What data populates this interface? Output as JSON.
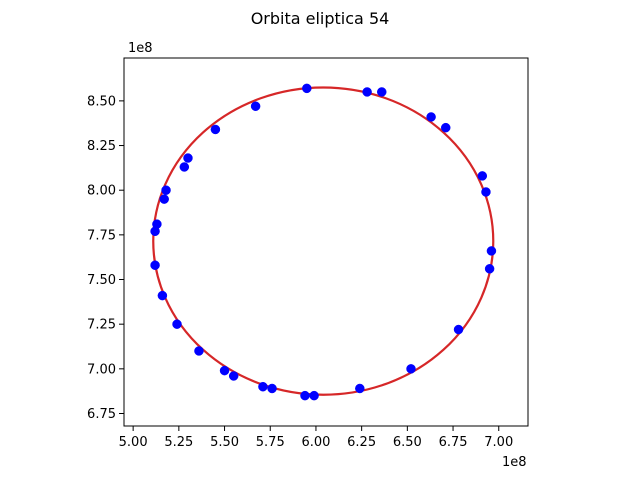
{
  "chart_data": {
    "type": "scatter",
    "title": "Orbita eliptica 54",
    "xlabel": "",
    "ylabel": "",
    "x_offset_label": "1e8",
    "y_offset_label": "1e8",
    "xlim": [
      4.95,
      7.16
    ],
    "ylim": [
      6.68,
      8.74
    ],
    "x_ticks": [
      5.0,
      5.25,
      5.5,
      5.75,
      6.0,
      6.25,
      6.5,
      6.75,
      7.0
    ],
    "x_tick_labels": [
      "5.00",
      "5.25",
      "5.50",
      "5.75",
      "6.00",
      "6.25",
      "6.50",
      "6.75",
      "7.00"
    ],
    "y_ticks": [
      6.75,
      7.0,
      7.25,
      7.5,
      7.75,
      8.0,
      8.25,
      8.5
    ],
    "y_tick_labels": [
      "6.75",
      "7.00",
      "7.25",
      "7.50",
      "7.75",
      "8.00",
      "8.25",
      "8.50"
    ],
    "grid": false,
    "legend": "none",
    "orbit_color": "#d62728",
    "point_color": "#0000ff",
    "orbit_curve": {
      "center": [
        6.04,
        7.715
      ],
      "semi_axis_x": 0.93,
      "semi_axis_y": 0.86
    },
    "points": [
      {
        "x": 5.95,
        "y": 8.57
      },
      {
        "x": 6.28,
        "y": 8.55
      },
      {
        "x": 6.36,
        "y": 8.55
      },
      {
        "x": 5.67,
        "y": 8.47
      },
      {
        "x": 6.63,
        "y": 8.41
      },
      {
        "x": 6.71,
        "y": 8.35
      },
      {
        "x": 5.45,
        "y": 8.34
      },
      {
        "x": 5.3,
        "y": 8.18
      },
      {
        "x": 5.28,
        "y": 8.13
      },
      {
        "x": 6.91,
        "y": 8.08
      },
      {
        "x": 5.18,
        "y": 8.0
      },
      {
        "x": 6.93,
        "y": 7.99
      },
      {
        "x": 5.17,
        "y": 7.95
      },
      {
        "x": 5.13,
        "y": 7.81
      },
      {
        "x": 5.12,
        "y": 7.77
      },
      {
        "x": 6.96,
        "y": 7.66
      },
      {
        "x": 5.12,
        "y": 7.58
      },
      {
        "x": 6.95,
        "y": 7.56
      },
      {
        "x": 5.16,
        "y": 7.41
      },
      {
        "x": 5.24,
        "y": 7.25
      },
      {
        "x": 6.78,
        "y": 7.22
      },
      {
        "x": 5.36,
        "y": 7.1
      },
      {
        "x": 6.52,
        "y": 7.0
      },
      {
        "x": 5.5,
        "y": 6.99
      },
      {
        "x": 5.55,
        "y": 6.96
      },
      {
        "x": 5.71,
        "y": 6.9
      },
      {
        "x": 5.76,
        "y": 6.89
      },
      {
        "x": 6.24,
        "y": 6.89
      },
      {
        "x": 5.94,
        "y": 6.85
      },
      {
        "x": 5.99,
        "y": 6.85
      }
    ]
  }
}
